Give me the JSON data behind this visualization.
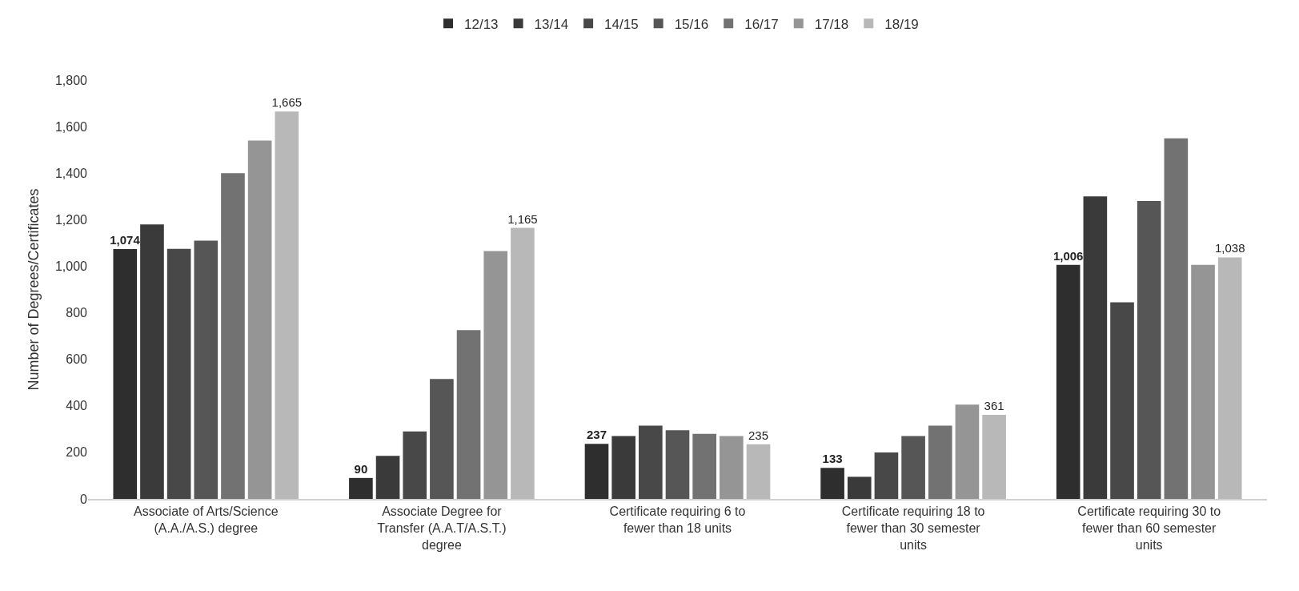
{
  "chart_data": {
    "type": "bar",
    "ylabel": "Number of Degrees/Certificates",
    "categories": [
      "Associate of Arts/Science (A.A./A.S.) degree",
      "Associate Degree for Transfer (A.A.T/A.S.T.) degree",
      "Certificate requiring 6 to fewer than 18 units",
      "Certificate requiring 18 to fewer than 30 semester units",
      "Certificate requiring 30 to fewer than 60 semester units"
    ],
    "series": [
      {
        "name": "12/13",
        "color": "#2e2e2e",
        "values": [
          1074,
          90,
          237,
          133,
          1006
        ],
        "value_labels": [
          "1,074",
          "90",
          "237",
          "133",
          "1,006"
        ]
      },
      {
        "name": "13/14",
        "color": "#3a3a3a",
        "values": [
          1180,
          185,
          270,
          95,
          1300
        ]
      },
      {
        "name": "14/15",
        "color": "#484848",
        "values": [
          1075,
          290,
          315,
          200,
          845
        ]
      },
      {
        "name": "15/16",
        "color": "#565656",
        "values": [
          1110,
          515,
          295,
          270,
          1280
        ]
      },
      {
        "name": "16/17",
        "color": "#727272",
        "values": [
          1400,
          725,
          280,
          315,
          1550
        ]
      },
      {
        "name": "17/18",
        "color": "#959595",
        "values": [
          1540,
          1065,
          270,
          405,
          1006
        ]
      },
      {
        "name": "18/19",
        "color": "#b8b8b8",
        "values": [
          1665,
          1165,
          235,
          361,
          1038
        ],
        "value_labels": [
          "1,665",
          "1,165",
          "235",
          "361",
          "1,038"
        ]
      }
    ],
    "ylim": [
      0,
      1800
    ],
    "yticks": [
      0,
      200,
      400,
      600,
      800,
      {
        "value": 1000,
        "label": "1,000"
      },
      {
        "value": 1200,
        "label": "1,200"
      },
      {
        "value": 1400,
        "label": "1,400"
      },
      {
        "value": 1600,
        "label": "1,600"
      },
      {
        "value": 1800,
        "label": "1,800"
      }
    ],
    "legend": "top"
  }
}
